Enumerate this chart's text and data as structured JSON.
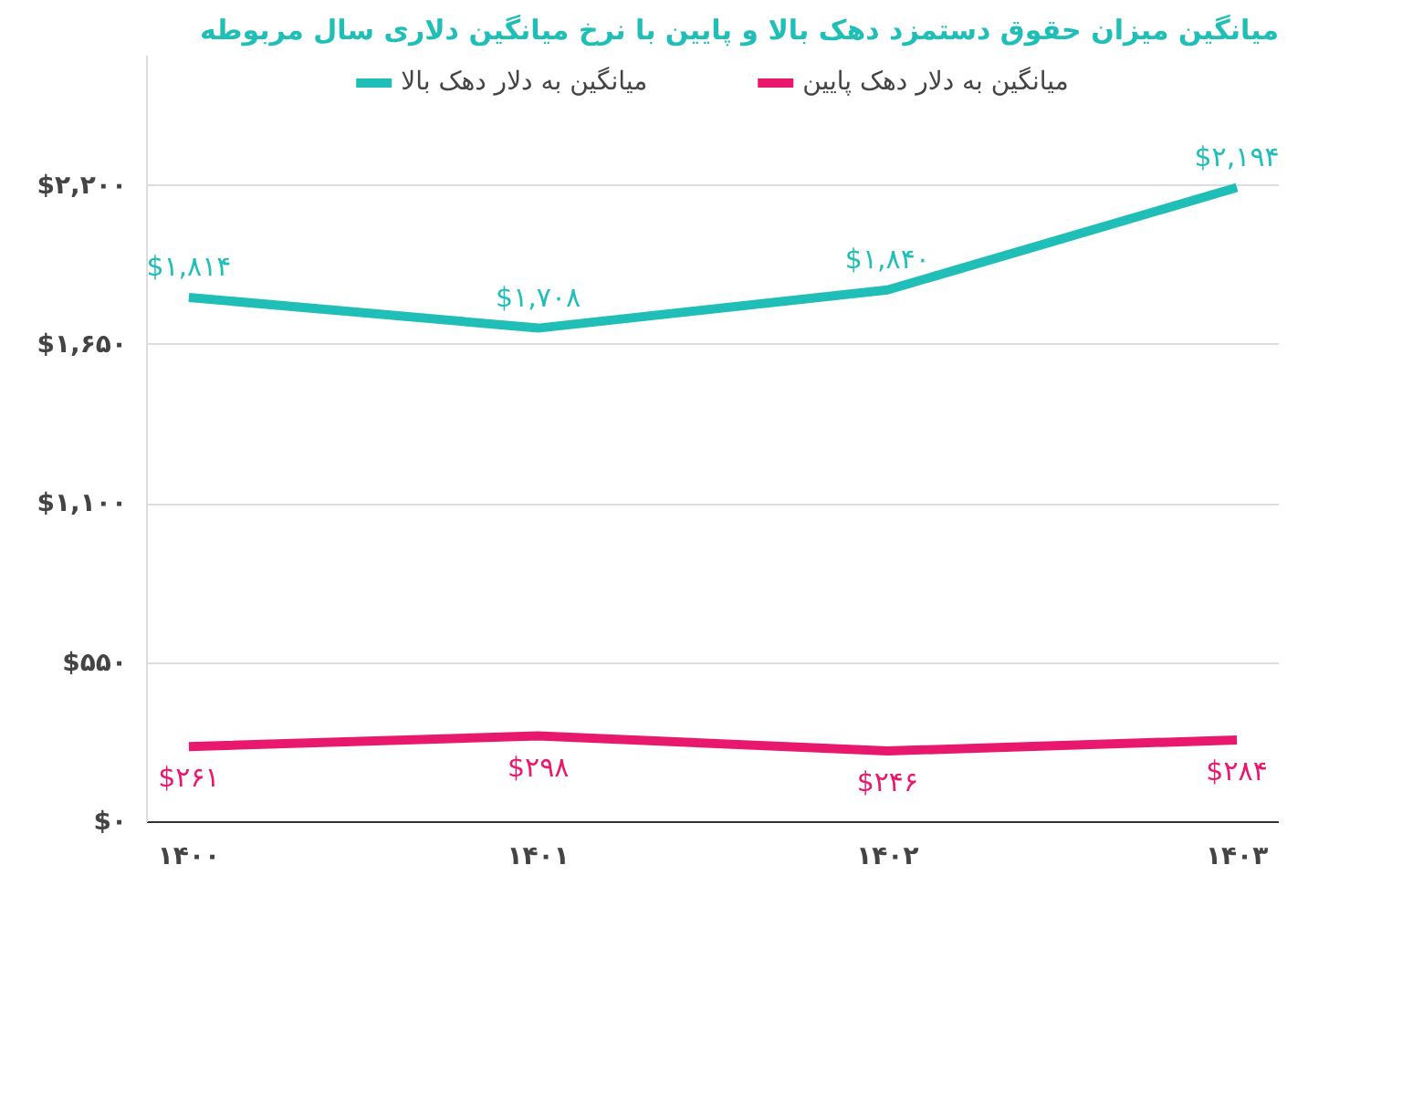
{
  "chart_data": {
    "type": "line",
    "title": "میانگین میزان حقوق دستمزد دهک بالا و پایین با نرخ میانگین دلاری سال مربوطه",
    "categories": [
      "۱۴۰۰",
      "۱۴۰۱",
      "۱۴۰۲",
      "۱۴۰۳"
    ],
    "series": [
      {
        "name": "میانگین به دلار دهک بالا",
        "color": "#1fbfb8",
        "values": [
          1814,
          1708,
          1840,
          2194
        ],
        "value_labels": [
          "$۱,۸۱۴",
          "$۱,۷۰۸",
          "$۱,۸۴۰",
          "$۲,۱۹۴"
        ]
      },
      {
        "name": "میانگین به دلار دهک پایین",
        "color": "#e8186f",
        "values": [
          261,
          298,
          246,
          284
        ],
        "value_labels": [
          "$۲۶۱",
          "$۲۹۸",
          "$۲۴۶",
          "$۲۸۴"
        ]
      }
    ],
    "ylim": [
      0,
      2650
    ],
    "yticks": [
      {
        "value": 0,
        "label": "$۰"
      },
      {
        "value": 550,
        "label": "$۵۵۰"
      },
      {
        "value": 1100,
        "label": "$۱,۱۰۰"
      },
      {
        "value": 1650,
        "label": "$۱,۶۵۰"
      },
      {
        "value": 2200,
        "label": "$۲,۲۰۰"
      }
    ],
    "grid": "y",
    "legend": "top",
    "marker": "none",
    "line_style": "solid"
  }
}
